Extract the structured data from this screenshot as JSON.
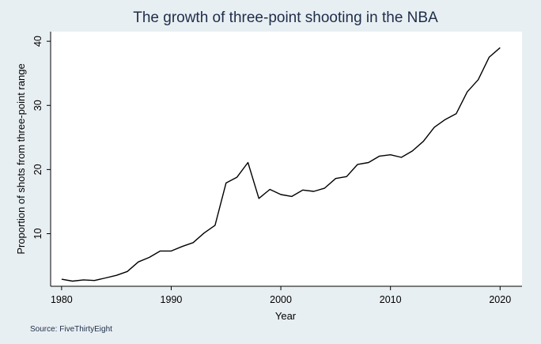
{
  "chart_data": {
    "type": "line",
    "title": "The growth of three-point shooting in the NBA",
    "xlabel": "Year",
    "ylabel": "Proportion of shots from three-point range",
    "note": "Source: FiveThirtyEight",
    "xlim": [
      1979,
      2022
    ],
    "ylim": [
      1.8,
      41.5
    ],
    "xticks": [
      1980,
      1990,
      2000,
      2010,
      2020
    ],
    "yticks": [
      10,
      20,
      30,
      40
    ],
    "grid": false,
    "legend": "none",
    "colors": {
      "line": "#000000",
      "plot_bg": "#ffffff",
      "page_bg": "#e8eff2",
      "title": "#1e2d4a"
    },
    "series": [
      {
        "x": [
          1980,
          1981,
          1982,
          1983,
          1984,
          1985,
          1986,
          1987,
          1988,
          1989,
          1990,
          1991,
          1992,
          1993,
          1994,
          1995,
          1996,
          1997,
          1998,
          1999,
          2000,
          2001,
          2002,
          2003,
          2004,
          2005,
          2006,
          2007,
          2008,
          2009,
          2010,
          2011,
          2012,
          2013,
          2014,
          2015,
          2016,
          2017,
          2018,
          2019,
          2020
        ],
        "values": [
          2.9,
          2.6,
          2.8,
          2.7,
          3.1,
          3.5,
          4.1,
          5.6,
          6.3,
          7.3,
          7.3,
          8.0,
          8.6,
          10.1,
          11.3,
          17.9,
          18.8,
          21.1,
          15.5,
          16.9,
          16.1,
          15.8,
          16.8,
          16.6,
          17.1,
          18.6,
          18.9,
          20.8,
          21.1,
          22.1,
          22.3,
          21.9,
          22.9,
          24.4,
          26.6,
          27.8,
          28.7,
          32.1,
          34.0,
          37.5,
          39.0
        ]
      }
    ]
  }
}
